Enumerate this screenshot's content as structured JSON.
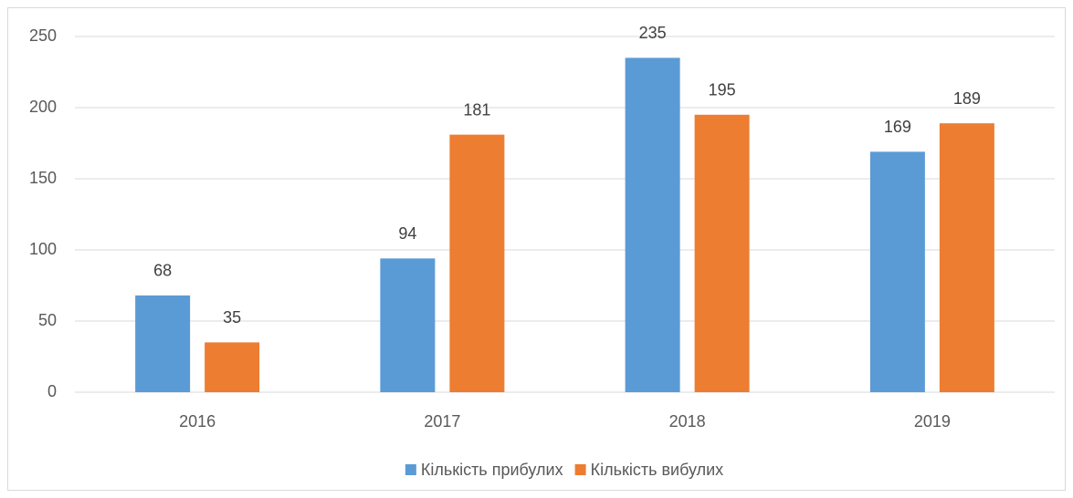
{
  "chart_data": {
    "type": "bar",
    "categories": [
      "2016",
      "2017",
      "2018",
      "2019"
    ],
    "series": [
      {
        "name": "Кількість прибулих",
        "color": "#5b9bd5",
        "values": [
          68,
          94,
          235,
          169
        ]
      },
      {
        "name": "Кількість вибулих",
        "color": "#ed7d31",
        "values": [
          35,
          181,
          195,
          189
        ]
      }
    ],
    "ylim": [
      0,
      250
    ],
    "yticks": [
      0,
      50,
      100,
      150,
      200,
      250
    ],
    "grid": true,
    "legend": "bottom"
  }
}
